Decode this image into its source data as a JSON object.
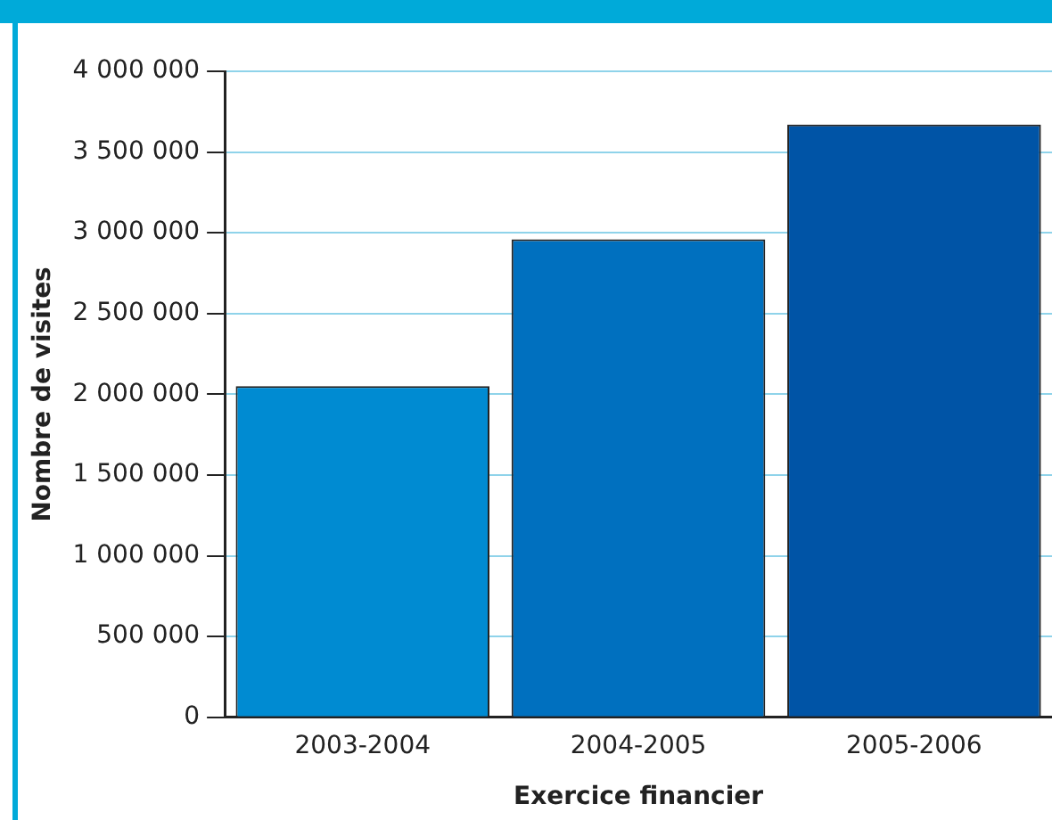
{
  "chart_data": {
    "type": "bar",
    "xlabel": "Exercice financier",
    "ylabel": "Nombre de visites",
    "categories": [
      "2003-2004",
      "2004-2005",
      "2005-2006"
    ],
    "values": [
      2050000,
      2960000,
      3670000
    ],
    "colors": [
      "#008bd2",
      "#0070bf",
      "#0054a6"
    ],
    "ylim": [
      0,
      4000000
    ],
    "yticks": [
      {
        "value": 0,
        "label": "0"
      },
      {
        "value": 500000,
        "label": "500 000"
      },
      {
        "value": 1000000,
        "label": "1 000 000"
      },
      {
        "value": 1500000,
        "label": "1 500 000"
      },
      {
        "value": 2000000,
        "label": "2 000 000"
      },
      {
        "value": 2500000,
        "label": "2 500 000"
      },
      {
        "value": 3000000,
        "label": "3 000 000"
      },
      {
        "value": 3500000,
        "label": "3 500 000"
      },
      {
        "value": 4000000,
        "label": "4 000 000"
      }
    ],
    "grid": "y",
    "legend": false
  }
}
